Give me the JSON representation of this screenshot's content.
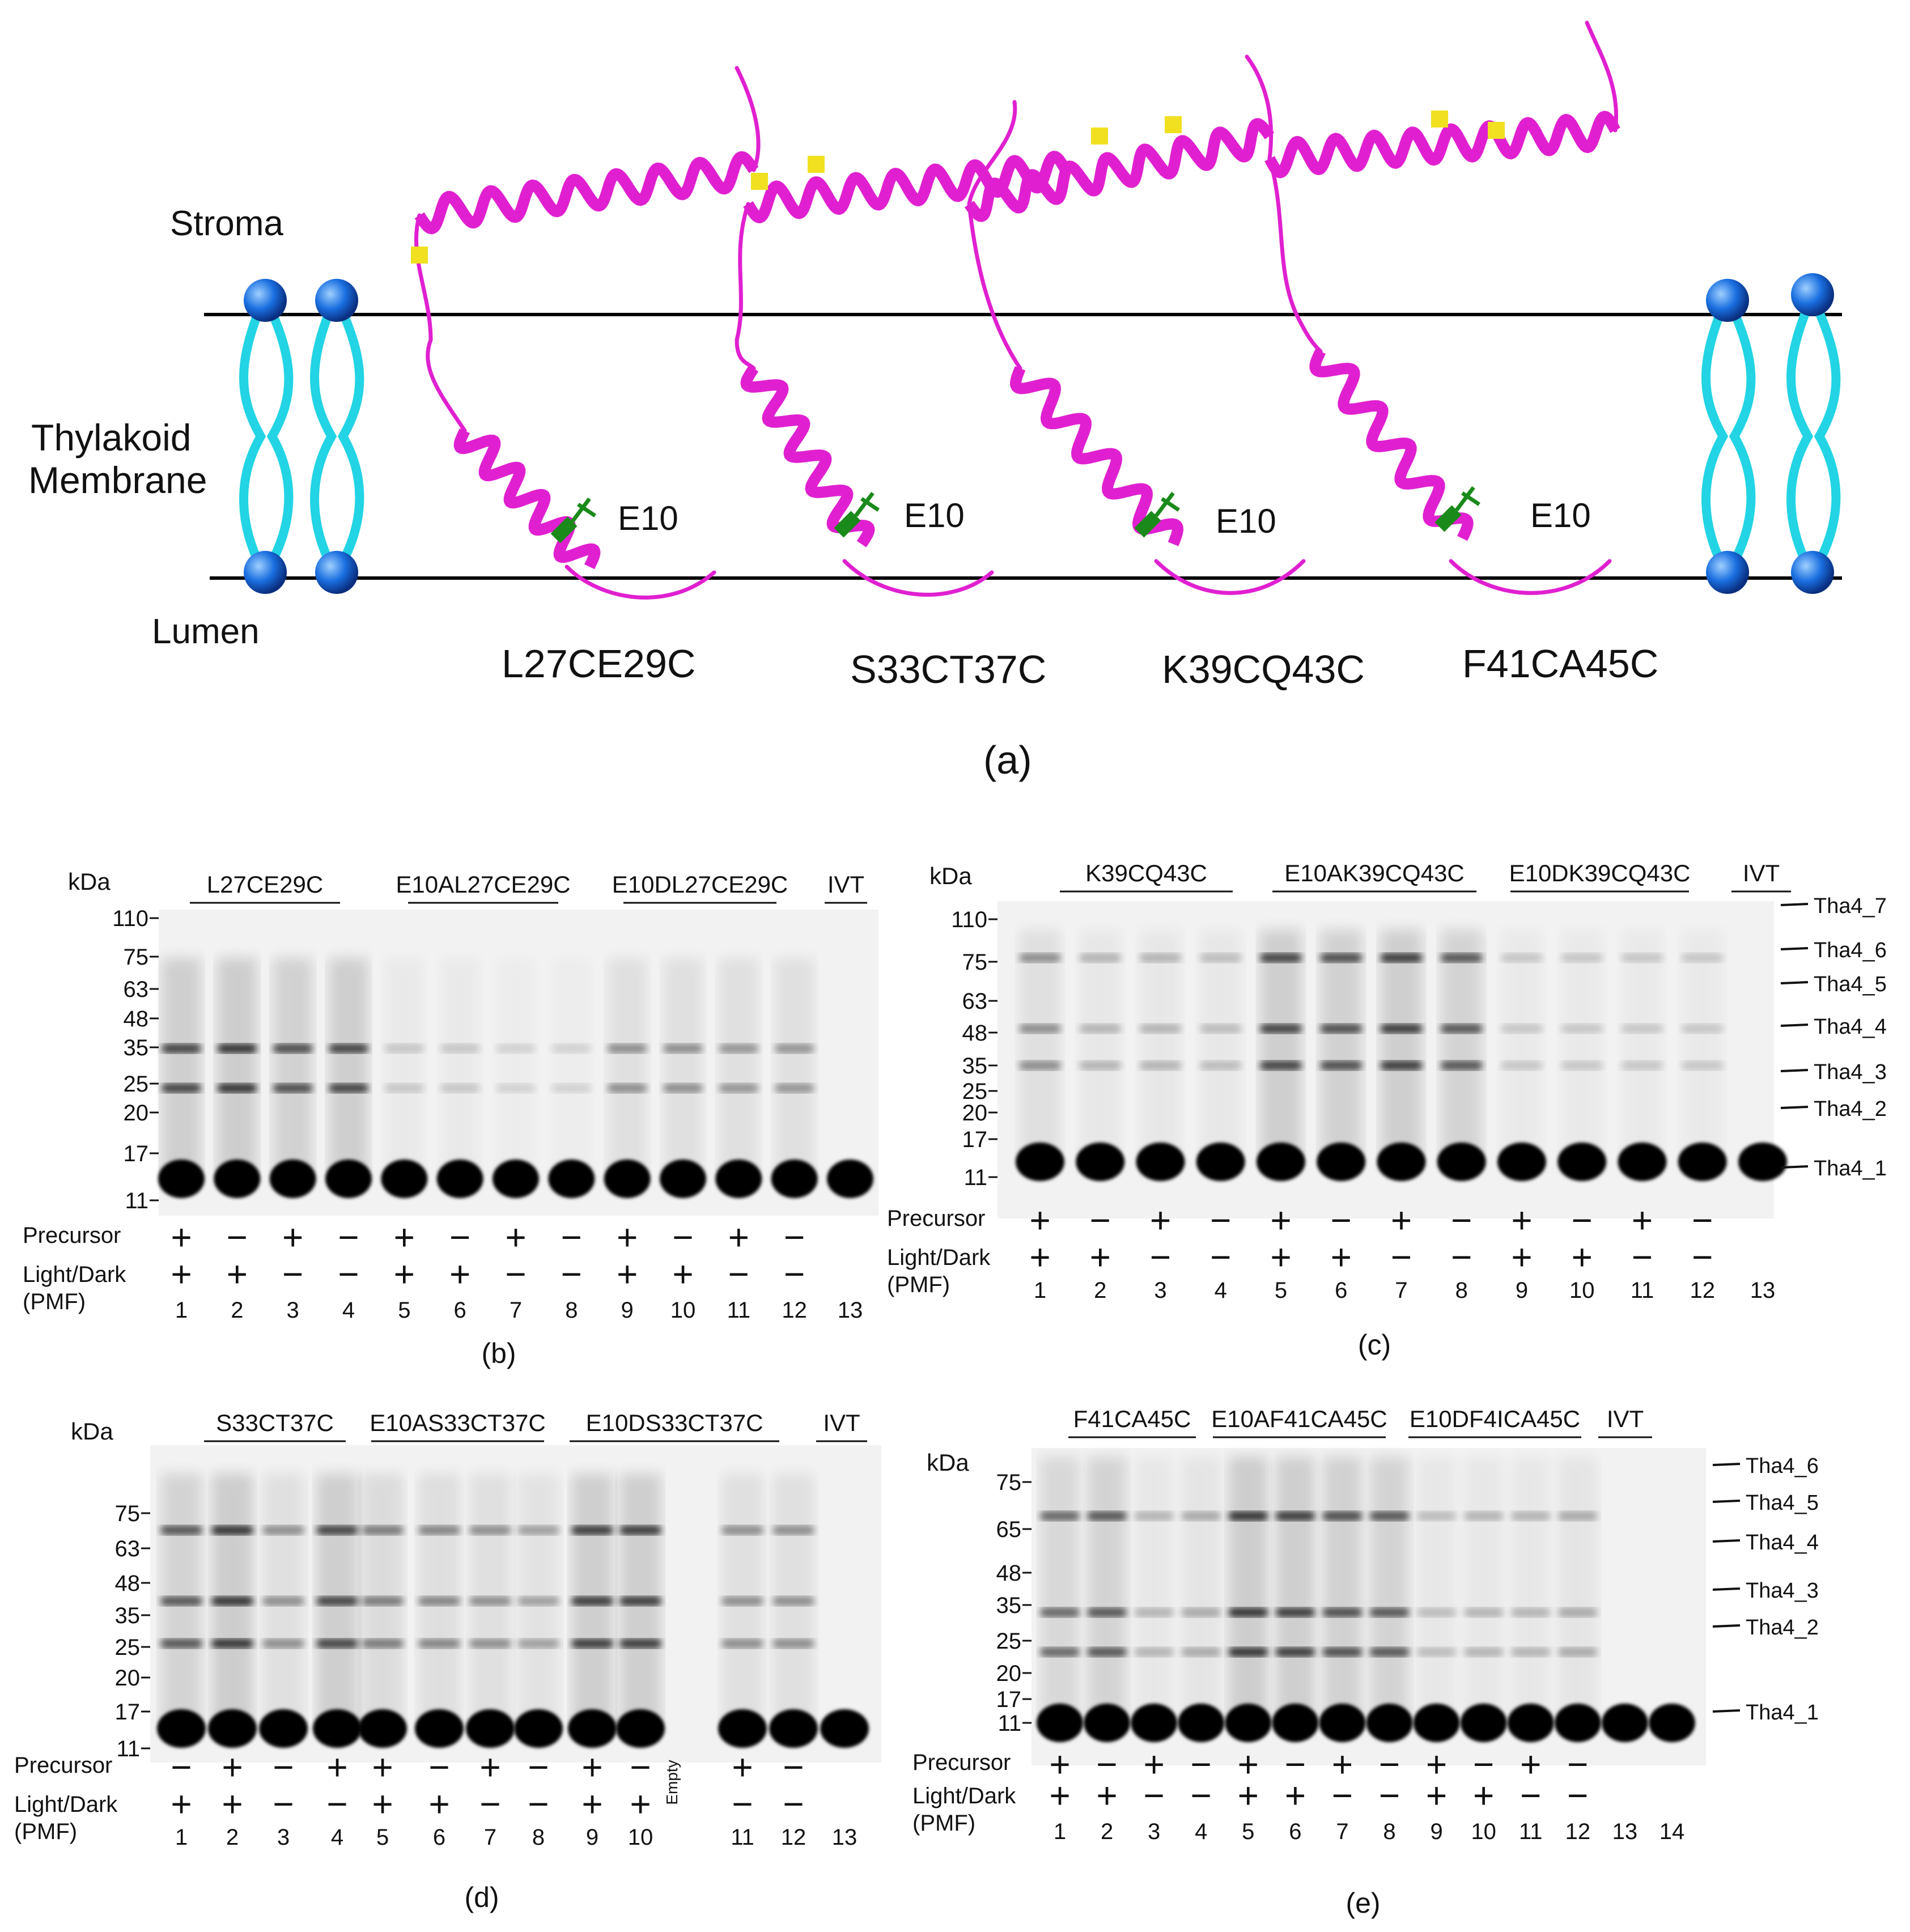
{
  "panel_a": {
    "labels": {
      "stroma": "Stroma",
      "membrane_l1": "Thylakoid",
      "membrane_l2": "Membrane",
      "lumen": "Lumen"
    },
    "residue": "E10",
    "constructs": [
      "L27CE29C",
      "S33CT37C",
      "K39CQ43C",
      "F41CA45C"
    ],
    "caption": "(a)"
  },
  "common": {
    "kda": "kDa",
    "precursor": "Precursor",
    "light_dark": "Light/Dark",
    "pmf": "(PMF)",
    "plus": "+",
    "minus": "−"
  },
  "panel_b": {
    "caption": "(b)",
    "groups": [
      "L27CE29C",
      "E10AL27CE29C",
      "E10DL27CE29C",
      "IVT"
    ],
    "markers": [
      "110",
      "75",
      "63",
      "48",
      "35",
      "25",
      "20",
      "17",
      "11"
    ],
    "lanes": [
      "1",
      "2",
      "3",
      "4",
      "5",
      "6",
      "7",
      "8",
      "9",
      "10",
      "11",
      "12",
      "13"
    ],
    "precursor": [
      "+",
      "−",
      "+",
      "−",
      "+",
      "−",
      "+",
      "−",
      "+",
      "−",
      "+",
      "−",
      ""
    ],
    "light": [
      "+",
      "+",
      "−",
      "−",
      "+",
      "+",
      "−",
      "−",
      "+",
      "+",
      "−",
      "−",
      ""
    ]
  },
  "panel_c": {
    "caption": "(c)",
    "groups": [
      "K39CQ43C",
      "E10AK39CQ43C",
      "E10DK39CQ43C",
      "IVT"
    ],
    "markers": [
      "110",
      "75",
      "63",
      "48",
      "35",
      "25",
      "20",
      "17",
      "11"
    ],
    "bands": [
      "Tha4_7",
      "Tha4_6",
      "Tha4_5",
      "Tha4_4",
      "Tha4_3",
      "Tha4_2",
      "Tha4_1"
    ],
    "lanes": [
      "1",
      "2",
      "3",
      "4",
      "5",
      "6",
      "7",
      "8",
      "9",
      "10",
      "11",
      "12",
      "13"
    ],
    "precursor": [
      "+",
      "−",
      "+",
      "−",
      "+",
      "−",
      "+",
      "−",
      "+",
      "−",
      "+",
      "−",
      ""
    ],
    "light": [
      "+",
      "+",
      "−",
      "−",
      "+",
      "+",
      "−",
      "−",
      "+",
      "+",
      "−",
      "−",
      ""
    ]
  },
  "panel_d": {
    "caption": "(d)",
    "groups": [
      "S33CT37C",
      "E10AS33CT37C",
      "E10DS33CT37C",
      "IVT"
    ],
    "markers": [
      "75",
      "63",
      "48",
      "35",
      "25",
      "20",
      "17",
      "11"
    ],
    "empty_label": "Empty",
    "lanes": [
      "1",
      "2",
      "3",
      "4",
      "5",
      "6",
      "7",
      "8",
      "9",
      "10",
      "11",
      "12",
      "13"
    ],
    "precursor": [
      "−",
      "+",
      "−",
      "+",
      "+",
      "−",
      "+",
      "−",
      "+",
      "−",
      "+",
      "−",
      ""
    ],
    "light": [
      "+",
      "+",
      "−",
      "−",
      "+",
      "+",
      "−",
      "−",
      "+",
      "+",
      "−",
      "−",
      ""
    ]
  },
  "panel_e": {
    "caption": "(e)",
    "groups": [
      "F41CA45C",
      "E10AF41CA45C",
      "E10DF4ICA45C",
      "IVT"
    ],
    "markers": [
      "75",
      "65",
      "48",
      "35",
      "25",
      "20",
      "17",
      "11"
    ],
    "bands": [
      "Tha4_6",
      "Tha4_5",
      "Tha4_4",
      "Tha4_3",
      "Tha4_2",
      "Tha4_1"
    ],
    "lanes": [
      "1",
      "2",
      "3",
      "4",
      "5",
      "6",
      "7",
      "8",
      "9",
      "10",
      "11",
      "12",
      "13",
      "14"
    ],
    "precursor": [
      "+",
      "−",
      "+",
      "−",
      "+",
      "−",
      "+",
      "−",
      "+",
      "−",
      "+",
      "−",
      "",
      ""
    ],
    "light": [
      "+",
      "+",
      "−",
      "−",
      "+",
      "+",
      "−",
      "−",
      "+",
      "+",
      "−",
      "−",
      "",
      ""
    ]
  },
  "colors": {
    "helix": "#e020d0",
    "lipid_tail": "#22d4e4",
    "lipid_head": "#1a6fe0",
    "residue_green": "#1a8a1a",
    "residue_yellow": "#f0e020"
  }
}
